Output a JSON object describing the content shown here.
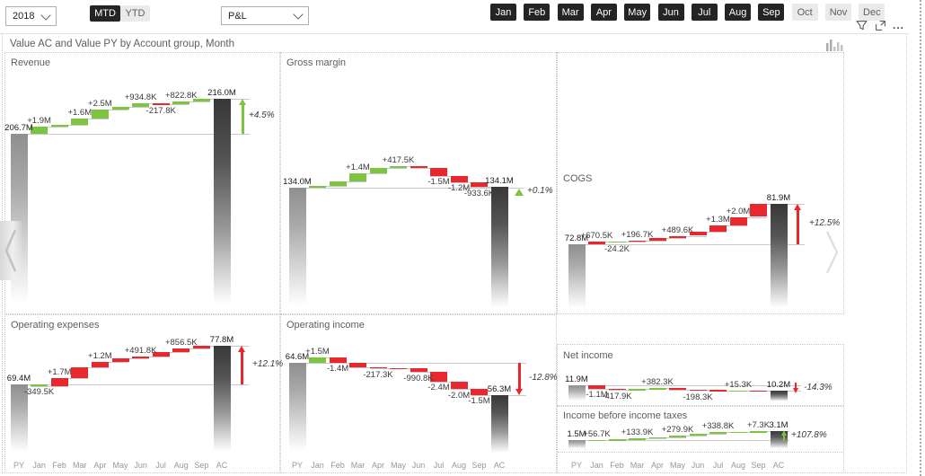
{
  "page": {
    "title": "Value AC and Value PY by Account group, Month"
  },
  "colors": {
    "positive": "#7dc540",
    "negative": "#e8282d",
    "total_py_top": "#8f8f8f",
    "total_ac_top": "#383838",
    "selected_month_bg": "#252423"
  },
  "controls": {
    "year_dropdown": {
      "value": "2018"
    },
    "period_toggle": {
      "options": [
        "MTD",
        "YTD"
      ],
      "active": "MTD"
    },
    "measure_dropdown": {
      "value": "P&L"
    },
    "month_slicer": {
      "months": [
        {
          "label": "Jan",
          "selected": true
        },
        {
          "label": "Feb",
          "selected": true
        },
        {
          "label": "Mar",
          "selected": true
        },
        {
          "label": "Apr",
          "selected": true
        },
        {
          "label": "May",
          "selected": true
        },
        {
          "label": "Jun",
          "selected": true
        },
        {
          "label": "Jul",
          "selected": true
        },
        {
          "label": "Aug",
          "selected": true
        },
        {
          "label": "Sep",
          "selected": true
        },
        {
          "label": "Oct",
          "selected": false
        },
        {
          "label": "Nov",
          "selected": false
        },
        {
          "label": "Dec",
          "selected": false
        }
      ]
    },
    "visual_header": {
      "more_label": "..."
    }
  },
  "axis_labels": [
    "PY",
    "Jan",
    "Feb",
    "Mar",
    "Apr",
    "May",
    "Jun",
    "Jul",
    "Aug",
    "Sep",
    "AC"
  ],
  "chart_data": [
    {
      "id": "revenue",
      "type": "waterfall",
      "title": "Revenue",
      "inverted": false,
      "py": {
        "label": "206.7M",
        "value": 206.7
      },
      "ac": {
        "label": "216.0M",
        "value": 216.0
      },
      "variance": {
        "label": "+4.5%",
        "tone": "positive",
        "indicator": "arrow-up"
      },
      "deltas": [
        {
          "month": "Jan",
          "value": 1.9,
          "label": "+1.9M"
        },
        {
          "month": "Feb",
          "value": 0.5,
          "label": null
        },
        {
          "month": "Mar",
          "value": 1.6,
          "label": "+1.6M"
        },
        {
          "month": "Apr",
          "value": 2.5,
          "label": "+2.5M"
        },
        {
          "month": "May",
          "value": 0.6,
          "label": null
        },
        {
          "month": "Jun",
          "value": 0.9348,
          "label": "+934.8K"
        },
        {
          "month": "Jul",
          "value": -0.2178,
          "label": "-217.8K"
        },
        {
          "month": "Aug",
          "value": 0.8228,
          "label": "+822.8K"
        },
        {
          "month": "Sep",
          "value": 0.66,
          "label": null
        }
      ]
    },
    {
      "id": "gross-margin",
      "type": "waterfall",
      "title": "Gross margin",
      "inverted": false,
      "py": {
        "label": "134.0M",
        "value": 134.0
      },
      "ac": {
        "label": "134.1M",
        "value": 134.1
      },
      "variance": {
        "label": "+0.1%",
        "tone": "positive",
        "indicator": "triangle-up"
      },
      "deltas": [
        {
          "month": "Jan",
          "value": 0.4,
          "label": null
        },
        {
          "month": "Feb",
          "value": 0.8,
          "label": null
        },
        {
          "month": "Mar",
          "value": 1.4,
          "label": "+1.4M"
        },
        {
          "month": "Apr",
          "value": 1.0,
          "label": null
        },
        {
          "month": "May",
          "value": 0.4175,
          "label": "+417.5K"
        },
        {
          "month": "Jun",
          "value": -0.28,
          "label": null
        },
        {
          "month": "Jul",
          "value": -1.5,
          "label": "-1.5M"
        },
        {
          "month": "Aug",
          "value": -1.2,
          "label": "-1.2M"
        },
        {
          "month": "Sep",
          "value": -0.9336,
          "label": "-933.6K"
        }
      ]
    },
    {
      "id": "cogs",
      "type": "waterfall",
      "title": "COGS",
      "inverted": true,
      "py": {
        "label": "72.8M",
        "value": 72.8
      },
      "ac": {
        "label": "81.9M",
        "value": 81.9
      },
      "variance": {
        "label": "+12.5%",
        "tone": "negative",
        "indicator": "arrow-up"
      },
      "deltas": [
        {
          "month": "Jan",
          "value": 0.6705,
          "label": "+670.5K"
        },
        {
          "month": "Feb",
          "value": -0.0242,
          "label": "-24.2K"
        },
        {
          "month": "Mar",
          "value": 0.1967,
          "label": "+196.7K"
        },
        {
          "month": "Apr",
          "value": 0.6,
          "label": null
        },
        {
          "month": "May",
          "value": 0.4896,
          "label": "+489.6K"
        },
        {
          "month": "Jun",
          "value": 1.0,
          "label": null
        },
        {
          "month": "Jul",
          "value": 1.3,
          "label": "+1.3M"
        },
        {
          "month": "Aug",
          "value": 2.0,
          "label": "+2.0M"
        },
        {
          "month": "Sep",
          "value": 2.867,
          "label": null
        }
      ]
    },
    {
      "id": "operating-expenses",
      "type": "waterfall",
      "title": "Operating expenses",
      "inverted": true,
      "py": {
        "label": "69.4M",
        "value": 69.4
      },
      "ac": {
        "label": "77.8M",
        "value": 77.8
      },
      "variance": {
        "label": "+12.1%",
        "tone": "negative",
        "indicator": "arrow-up"
      },
      "deltas": [
        {
          "month": "Jan",
          "value": -0.3495,
          "label": "-349.5K"
        },
        {
          "month": "Feb",
          "value": 1.7,
          "label": "+1.7M"
        },
        {
          "month": "Mar",
          "value": 2.3,
          "label": null
        },
        {
          "month": "Apr",
          "value": 1.2,
          "label": "+1.2M"
        },
        {
          "month": "May",
          "value": 0.8,
          "label": null
        },
        {
          "month": "Jun",
          "value": 0.4918,
          "label": "+491.8K"
        },
        {
          "month": "Jul",
          "value": 0.9,
          "label": null
        },
        {
          "month": "Aug",
          "value": 0.8565,
          "label": "+856.5K"
        },
        {
          "month": "Sep",
          "value": 0.5,
          "label": null
        }
      ]
    },
    {
      "id": "operating-income",
      "type": "waterfall",
      "title": "Operating income",
      "inverted": false,
      "py": {
        "label": "64.6M",
        "value": 64.6
      },
      "ac": {
        "label": "56.3M",
        "value": 56.3
      },
      "variance": {
        "label": "-12.8%",
        "tone": "negative",
        "indicator": "arrow-down"
      },
      "deltas": [
        {
          "month": "Jan",
          "value": 1.5,
          "label": "+1.5M"
        },
        {
          "month": "Feb",
          "value": -1.4,
          "label": "-1.4M"
        },
        {
          "month": "Mar",
          "value": -1.2,
          "label": null
        },
        {
          "month": "Apr",
          "value": -0.2173,
          "label": "-217.3K"
        },
        {
          "month": "May",
          "value": -0.1,
          "label": null
        },
        {
          "month": "Jun",
          "value": -0.9908,
          "label": "-990.8K"
        },
        {
          "month": "Jul",
          "value": -2.4,
          "label": "-2.4M"
        },
        {
          "month": "Aug",
          "value": -2.0,
          "label": "-2.0M"
        },
        {
          "month": "Sep",
          "value": -1.5,
          "label": "-1.5M"
        }
      ]
    },
    {
      "id": "net-income",
      "type": "waterfall",
      "title": "Net income",
      "inverted": false,
      "py": {
        "label": "11.9M",
        "value": 11.9
      },
      "ac": {
        "label": "10.2M",
        "value": 10.2
      },
      "variance": {
        "label": "-14.3%",
        "tone": "negative",
        "indicator": "mini-down"
      },
      "deltas": [
        {
          "month": "Jan",
          "value": -1.1,
          "label": "-1.1M"
        },
        {
          "month": "Feb",
          "value": -0.4179,
          "label": "-417.9K"
        },
        {
          "month": "Mar",
          "value": 0.25,
          "label": null
        },
        {
          "month": "Apr",
          "value": 0.3823,
          "label": "+382.3K"
        },
        {
          "month": "May",
          "value": -0.45,
          "label": null
        },
        {
          "month": "Jun",
          "value": -0.1983,
          "label": "-198.3K"
        },
        {
          "month": "Jul",
          "value": -0.1,
          "label": null
        },
        {
          "month": "Aug",
          "value": 0.0153,
          "label": "+15.3K"
        },
        {
          "month": "Sep",
          "value": -0.08,
          "label": null
        }
      ]
    },
    {
      "id": "income-before-income-taxes",
      "type": "waterfall",
      "title": "Income before income taxes",
      "inverted": false,
      "py": {
        "label": "1.5M",
        "value": 1.5
      },
      "ac": {
        "label": "3.1M",
        "value": 3.1
      },
      "variance": {
        "label": "+107.8%",
        "tone": "positive",
        "indicator": "mini-up"
      },
      "deltas": [
        {
          "month": "Jan",
          "value": 0.0567,
          "label": "+56.7K"
        },
        {
          "month": "Feb",
          "value": 0.1,
          "label": null
        },
        {
          "month": "Mar",
          "value": 0.1339,
          "label": "+133.9K"
        },
        {
          "month": "Apr",
          "value": 0.25,
          "label": null
        },
        {
          "month": "May",
          "value": 0.2799,
          "label": "+279.9K"
        },
        {
          "month": "Jun",
          "value": 0.3,
          "label": null
        },
        {
          "month": "Jul",
          "value": 0.3388,
          "label": "+338.8K"
        },
        {
          "month": "Aug",
          "value": 0.13,
          "label": null
        },
        {
          "month": "Sep",
          "value": 0.0073,
          "label": "+7.3K"
        }
      ]
    }
  ]
}
